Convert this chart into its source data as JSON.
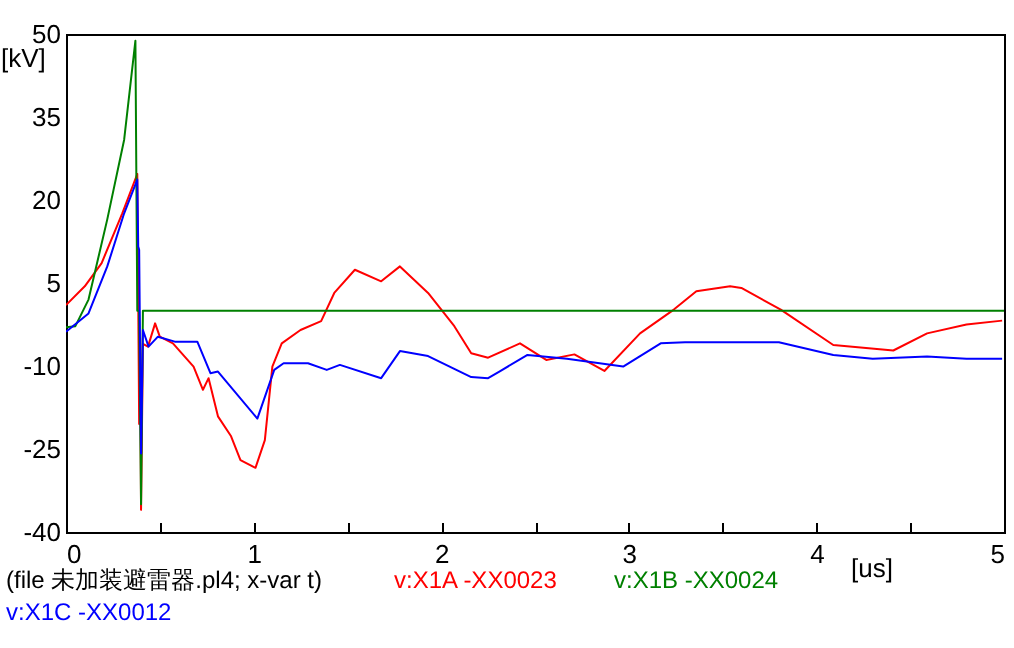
{
  "chart_data": {
    "type": "line",
    "xlabel": "[us]",
    "ylabel": "[kV]",
    "annotations": [
      "(file 未加装避雷器.pl4; x-var t)"
    ],
    "xlim": [
      0,
      5
    ],
    "ylim": [
      -40,
      50
    ],
    "xticks": [
      0,
      {
        "value": 0.5,
        "label": null
      },
      1,
      {
        "value": 1.5,
        "label": null
      },
      2,
      {
        "value": 2.5,
        "label": null
      },
      3,
      {
        "value": 3.5,
        "label": null
      },
      4,
      {
        "value": 4.5,
        "label": null
      },
      5
    ],
    "yticks": [
      -40,
      -25,
      -10,
      5,
      20,
      35,
      50
    ],
    "grid": false,
    "legend": "bottom",
    "line_style": "solid",
    "marker": "none",
    "series": [
      {
        "name": "v:X1A  -XX0023",
        "color": "#ff0000",
        "x": [
          0,
          0.1,
          0.19,
          0.3,
          0.38,
          0.39,
          0.395,
          0.4,
          0.41,
          0.437,
          0.475,
          0.5,
          0.57,
          0.68,
          0.73,
          0.76,
          0.81,
          0.88,
          0.93,
          1.01,
          1.06,
          1.1,
          1.15,
          1.25,
          1.36,
          1.43,
          1.54,
          1.68,
          1.78,
          1.93,
          2.07,
          2.16,
          2.25,
          2.42,
          2.56,
          2.71,
          2.87,
          3.06,
          3.24,
          3.36,
          3.54,
          3.6,
          3.81,
          4.09,
          4.41,
          4.59,
          4.8,
          4.99
        ],
        "values": [
          1,
          4.4,
          8.6,
          17.6,
          24.7,
          -20.5,
          -5,
          -36,
          -6,
          -6.5,
          -2.3,
          -4.7,
          -5.9,
          -10.1,
          -14.3,
          -12.2,
          -19.1,
          -22.7,
          -27,
          -28.4,
          -23.4,
          -10.1,
          -5.9,
          -3.5,
          -1.9,
          3.2,
          7.4,
          5.3,
          8,
          3.2,
          -2.8,
          -7.7,
          -8.5,
          -5.9,
          -8.9,
          -7.9,
          -10.9,
          -4.1,
          0.2,
          3.5,
          4.4,
          4.1,
          0.2,
          -6.2,
          -7.2,
          -4.1,
          -2.5,
          -1.8
        ]
      },
      {
        "name": "v:X1B  -XX0024",
        "color": "#008000",
        "x": [
          0,
          0.05,
          0.12,
          0.22,
          0.31,
          0.37,
          0.38,
          0.39,
          0.4,
          0.41,
          5
        ],
        "values": [
          -3,
          -2.8,
          2,
          16.5,
          30.9,
          48.8,
          0,
          0,
          -35,
          0,
          0
        ]
      },
      {
        "name": "v:X1C  -XX0012",
        "color": "#0000ff",
        "x": [
          0,
          0.12,
          0.22,
          0.31,
          0.38,
          0.385,
          0.39,
          0.4,
          0.41,
          0.44,
          0.49,
          0.58,
          0.7,
          0.77,
          0.81,
          1.02,
          1.11,
          1.16,
          1.29,
          1.39,
          1.46,
          1.68,
          1.78,
          1.93,
          2.16,
          2.25,
          2.31,
          2.46,
          2.67,
          2.97,
          3.17,
          3.3,
          3.8,
          4.09,
          4.3,
          4.59,
          4.8,
          4.99
        ],
        "values": [
          -3.8,
          -0.5,
          8,
          17.6,
          23.7,
          11.6,
          11,
          -25.8,
          -3.5,
          -6.5,
          -4.7,
          -5.6,
          -5.6,
          -11.3,
          -11,
          -19.5,
          -10.7,
          -9.5,
          -9.5,
          -10.7,
          -9.8,
          -12.2,
          -7.3,
          -8.2,
          -12,
          -12.2,
          -11,
          -8,
          -8.7,
          -10.1,
          -5.9,
          -5.7,
          -5.7,
          -8,
          -8.7,
          -8.3,
          -8.7,
          -8.7
        ]
      }
    ]
  }
}
